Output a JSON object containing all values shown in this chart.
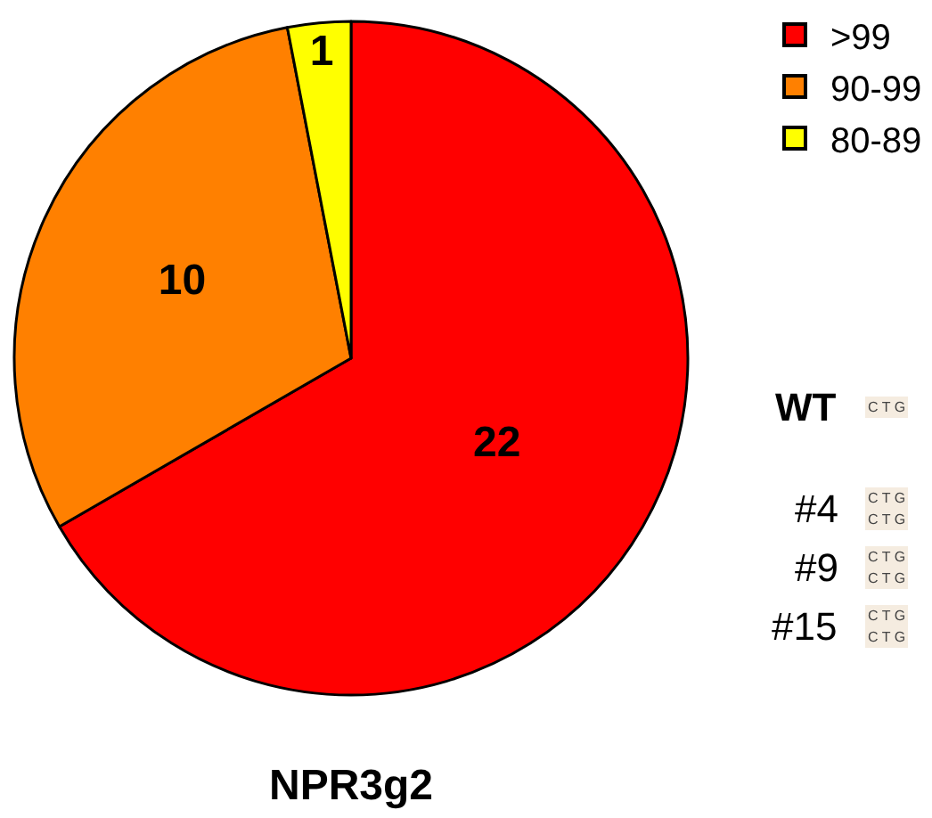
{
  "chart_data": {
    "type": "pie",
    "title": "NPR3g2",
    "categories": [
      ">99",
      "90-99",
      "80-89"
    ],
    "values": [
      22,
      10,
      1
    ],
    "colors": [
      "#ff0000",
      "#ff8000",
      "#ffff00"
    ],
    "data_labels": true,
    "legend": "top right",
    "annotations": [
      "WT",
      "#4",
      "#9",
      "#15",
      "C T G",
      "C T G",
      "C T G",
      "C T G",
      "C T G",
      "C T G",
      "C T G"
    ]
  }
}
